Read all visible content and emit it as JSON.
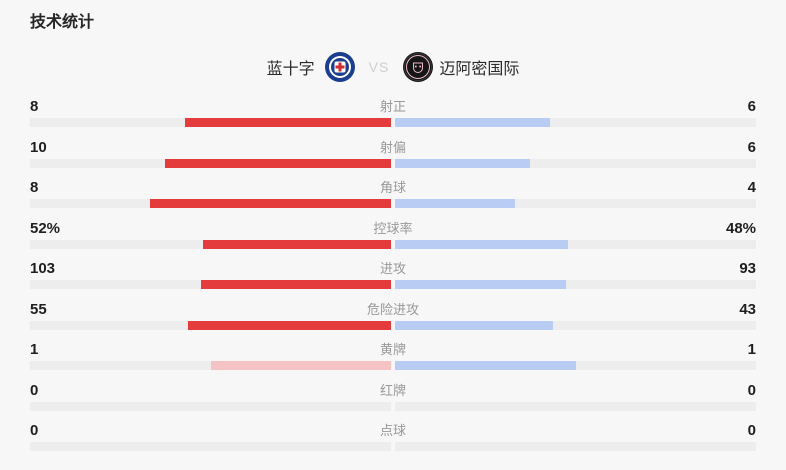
{
  "page": {
    "title": "技术统计",
    "background": "#f7f7f8"
  },
  "header": {
    "home_team": "蓝十字",
    "away_team": "迈阿密国际",
    "vs_label": "VS"
  },
  "colors": {
    "home_strong": "#e43b3c",
    "home_light": "#f6c3c4",
    "away_light": "#b9ccf4",
    "track": "#ededee",
    "value_text": "#1f1f1f",
    "label_text": "#999999",
    "vs_text": "#cfcfcf",
    "home_logo_blue": "#1b3e8f",
    "home_logo_cross": "#d62b2b",
    "away_logo_black": "#151515",
    "away_logo_pink": "#f0b9cf"
  },
  "stats": {
    "rows": [
      {
        "label": "射正",
        "home": "8",
        "away": "6",
        "home_num": 8,
        "away_num": 6
      },
      {
        "label": "射偏",
        "home": "10",
        "away": "6",
        "home_num": 10,
        "away_num": 6
      },
      {
        "label": "角球",
        "home": "8",
        "away": "4",
        "home_num": 8,
        "away_num": 4
      },
      {
        "label": "控球率",
        "home": "52%",
        "away": "48%",
        "home_num": 52,
        "away_num": 48
      },
      {
        "label": "进攻",
        "home": "103",
        "away": "93",
        "home_num": 103,
        "away_num": 93
      },
      {
        "label": "危险进攻",
        "home": "55",
        "away": "43",
        "home_num": 55,
        "away_num": 43
      },
      {
        "label": "黄牌",
        "home": "1",
        "away": "1",
        "home_num": 1,
        "away_num": 1
      },
      {
        "label": "红牌",
        "home": "0",
        "away": "0",
        "home_num": 0,
        "away_num": 0
      },
      {
        "label": "点球",
        "home": "0",
        "away": "0",
        "home_num": 0,
        "away_num": 0
      }
    ]
  },
  "chart_data": {
    "type": "bar",
    "title": "技术统计",
    "orientation": "horizontal-paired-from-center",
    "categories": [
      "射正",
      "射偏",
      "角球",
      "控球率",
      "进攻",
      "危险进攻",
      "黄牌",
      "红牌",
      "点球"
    ],
    "series": [
      {
        "name": "蓝十字",
        "values": [
          8,
          10,
          8,
          52,
          103,
          55,
          1,
          0,
          0
        ]
      },
      {
        "name": "迈阿密国际",
        "values": [
          6,
          6,
          4,
          48,
          93,
          43,
          1,
          0,
          0
        ]
      }
    ],
    "value_labels_shown": [
      "8/6",
      "10/6",
      "8/4",
      "52%/48%",
      "103/93",
      "55/43",
      "1/1",
      "0/0",
      "0/0"
    ],
    "bar_scaling": "each side length = value / (home+away) of half-track width"
  }
}
